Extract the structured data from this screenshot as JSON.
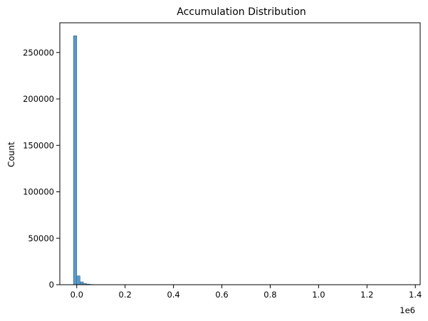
{
  "chart_data": {
    "type": "bar",
    "title": "Accumulation Distribution",
    "xlabel": "",
    "ylabel": "Count",
    "x_offset_label": "1e6",
    "x_scale": 1000000,
    "xlim": [
      -70000,
      1420000
    ],
    "ylim": [
      0,
      282000
    ],
    "x_ticks": [
      0,
      200000,
      400000,
      600000,
      800000,
      1000000,
      1200000,
      1400000
    ],
    "x_tick_labels": [
      "0.0",
      "0.2",
      "0.4",
      "0.6",
      "0.8",
      "1.0",
      "1.2",
      "1.4"
    ],
    "y_ticks": [
      0,
      50000,
      100000,
      150000,
      200000,
      250000
    ],
    "y_tick_labels": [
      "0",
      "50000",
      "100000",
      "150000",
      "200000",
      "250000"
    ],
    "grid": false,
    "bar_color": "#5b9bc8",
    "bar_edge_color": "#2f5f85",
    "bins": [
      {
        "x0": -13500,
        "x1": 0,
        "count": 268000
      },
      {
        "x0": 0,
        "x1": 13500,
        "count": 9500
      },
      {
        "x0": 13500,
        "x1": 27000,
        "count": 3000
      },
      {
        "x0": 27000,
        "x1": 40500,
        "count": 1200
      },
      {
        "x0": 40500,
        "x1": 54000,
        "count": 600
      },
      {
        "x0": 54000,
        "x1": 67500,
        "count": 300
      },
      {
        "x0": 67500,
        "x1": 81000,
        "count": 150
      },
      {
        "x0": 81000,
        "x1": 94500,
        "count": 80
      },
      {
        "x0": 94500,
        "x1": 108000,
        "count": 40
      },
      {
        "x0": 108000,
        "x1": 121500,
        "count": 20
      }
    ]
  }
}
